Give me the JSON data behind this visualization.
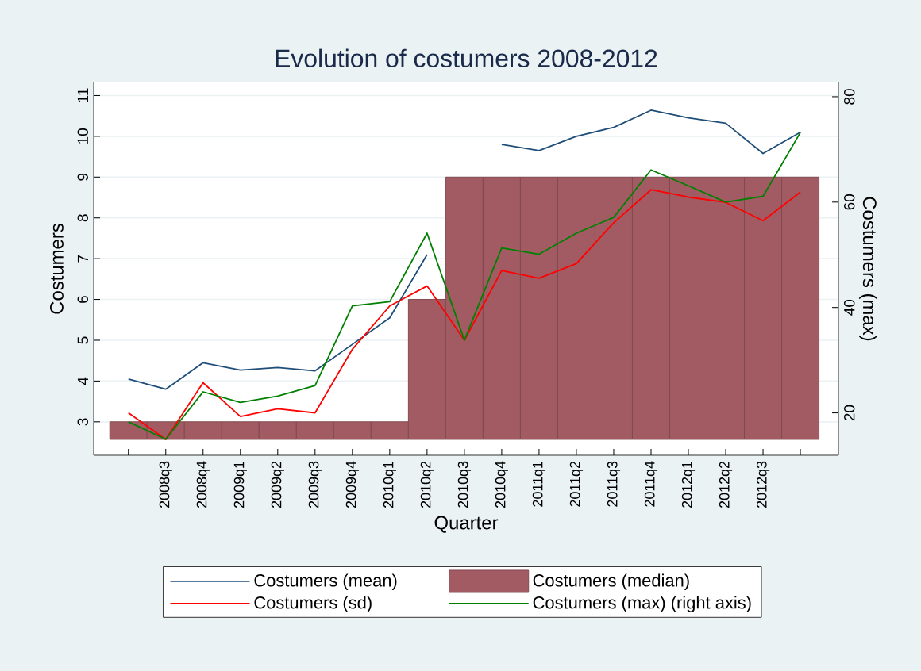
{
  "chart_data": {
    "type": "line",
    "title": "Evolution of costumers 2008-2012",
    "xlabel": "Quarter",
    "ylabel": "Costumers",
    "y2label": "Costumers (max)",
    "categories": [
      null,
      "2008q3",
      "2008q4",
      "2009q1",
      "2009q2",
      "2009q3",
      "2009q4",
      "2010q1",
      "2010q2",
      "2010q3",
      "2010q4",
      "2011q1",
      "2011q2",
      "2011q3",
      "2011q4",
      "2012q1",
      "2012q2",
      "2012q3",
      null
    ],
    "series": [
      {
        "name": "Costumers (mean)",
        "color": "#1f4e79",
        "values": [
          4.05,
          3.8,
          4.45,
          4.27,
          4.33,
          4.25,
          4.9,
          5.55,
          7.1,
          null,
          9.8,
          9.65,
          10.0,
          10.22,
          10.64,
          10.45,
          10.32,
          9.58,
          10.1
        ]
      },
      {
        "name": "Costumers (median)",
        "type": "bar",
        "color": "#a35b63",
        "base": [
          2.57,
          2.57,
          2.57,
          2.57,
          2.57,
          2.57,
          2.57,
          2.57,
          2.57,
          2.57,
          2.57,
          2.57,
          2.57,
          2.57,
          2.57,
          2.57,
          2.57,
          2.57,
          2.57
        ],
        "values": [
          0.43,
          0.43,
          0.43,
          0.43,
          0.43,
          0.43,
          0.43,
          0.43,
          3.43,
          6.43,
          6.43,
          6.43,
          6.43,
          6.43,
          6.43,
          6.43,
          6.43,
          6.43,
          6.43
        ]
      },
      {
        "name": "Costumers (sd)",
        "color": "#ff0000",
        "values": [
          3.22,
          2.57,
          3.96,
          3.13,
          3.32,
          3.22,
          4.78,
          5.84,
          6.33,
          5.0,
          6.71,
          6.52,
          6.88,
          7.88,
          8.69,
          8.51,
          8.38,
          7.93,
          8.63
        ]
      },
      {
        "name": "Costumers (max) (right axis)",
        "color": "#008000",
        "axis": "y2",
        "values": [
          18.3,
          15.0,
          24.0,
          22.0,
          23.2,
          25.2,
          40.3,
          41.1,
          54.1,
          33.8,
          51.3,
          50.1,
          54.1,
          57.1,
          66.1,
          63.1,
          60.0,
          61.1,
          73.2
        ]
      }
    ],
    "ylim": [
      2.18,
      11.32
    ],
    "yticks": [
      3,
      4,
      5,
      6,
      7,
      8,
      9,
      10,
      11
    ],
    "y2lim": [
      11.96,
      82.7
    ],
    "y2ticks": [
      20,
      40,
      60,
      80
    ],
    "grid": "y",
    "legend": "bottom",
    "marker": "none",
    "line_style": "solid"
  }
}
